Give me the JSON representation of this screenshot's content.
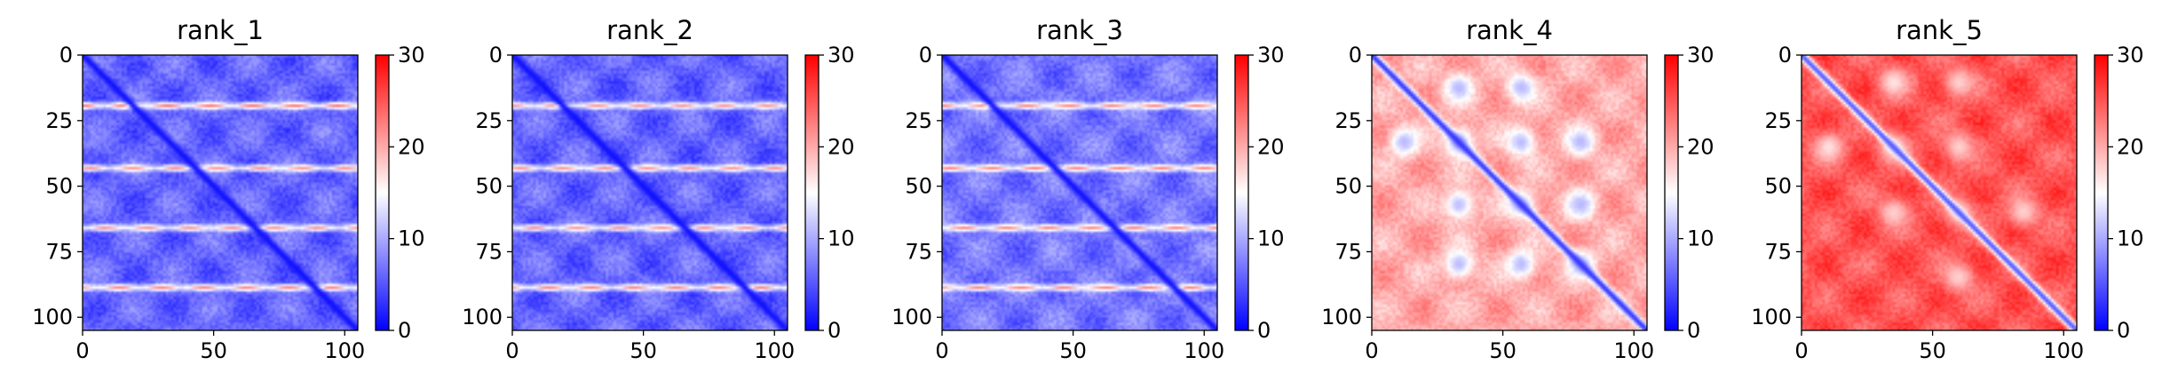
{
  "figure": {
    "panels": [
      "rank_1",
      "rank_2",
      "rank_3",
      "rank_4",
      "rank_5"
    ]
  },
  "chart_data": [
    {
      "type": "heatmap",
      "title": "rank_1",
      "x_range": [
        0,
        105
      ],
      "y_range": [
        0,
        105
      ],
      "x_ticks": [
        0,
        50,
        100
      ],
      "y_ticks": [
        0,
        25,
        50,
        75,
        100
      ],
      "y_inverted": true,
      "colormap": "bwr",
      "colorbar": {
        "min": 0,
        "max": 30,
        "ticks": [
          0,
          10,
          20,
          30
        ]
      },
      "pattern": {
        "base_value": 6,
        "diagonal_value": 1,
        "bands": [
          {
            "row": 19,
            "value": 23
          },
          {
            "row": 43,
            "value": 21
          },
          {
            "row": 66,
            "value": 21
          },
          {
            "row": 89,
            "value": 22
          }
        ]
      }
    },
    {
      "type": "heatmap",
      "title": "rank_2",
      "x_range": [
        0,
        105
      ],
      "y_range": [
        0,
        105
      ],
      "x_ticks": [
        0,
        50,
        100
      ],
      "y_ticks": [
        0,
        25,
        50,
        75,
        100
      ],
      "y_inverted": true,
      "colormap": "bwr",
      "colorbar": {
        "min": 0,
        "max": 30,
        "ticks": [
          0,
          10,
          20,
          30
        ]
      },
      "pattern": {
        "base_value": 6,
        "diagonal_value": 1,
        "bands": [
          {
            "row": 19,
            "value": 21
          },
          {
            "row": 43,
            "value": 21
          },
          {
            "row": 66,
            "value": 21
          },
          {
            "row": 89,
            "value": 22
          }
        ]
      }
    },
    {
      "type": "heatmap",
      "title": "rank_3",
      "x_range": [
        0,
        105
      ],
      "y_range": [
        0,
        105
      ],
      "x_ticks": [
        0,
        50,
        100
      ],
      "y_ticks": [
        0,
        25,
        50,
        75,
        100
      ],
      "y_inverted": true,
      "colormap": "bwr",
      "colorbar": {
        "min": 0,
        "max": 30,
        "ticks": [
          0,
          10,
          20,
          30
        ]
      },
      "pattern": {
        "base_value": 7,
        "diagonal_value": 1,
        "bands": [
          {
            "row": 19,
            "value": 22
          },
          {
            "row": 43,
            "value": 22
          },
          {
            "row": 66,
            "value": 22
          },
          {
            "row": 89,
            "value": 22
          }
        ]
      }
    },
    {
      "type": "heatmap",
      "title": "rank_4",
      "x_range": [
        0,
        105
      ],
      "y_range": [
        0,
        105
      ],
      "x_ticks": [
        0,
        50,
        100
      ],
      "y_ticks": [
        0,
        25,
        50,
        75,
        100
      ],
      "y_inverted": true,
      "colormap": "bwr",
      "colorbar": {
        "min": 0,
        "max": 30,
        "ticks": [
          0,
          10,
          20,
          30
        ]
      },
      "pattern": {
        "base_value": 20,
        "diagonal_value": 3,
        "blobs": [
          {
            "row": 12,
            "col": 33,
            "value": 10
          },
          {
            "row": 12,
            "col": 57,
            "value": 10
          },
          {
            "row": 33,
            "col": 12,
            "value": 10
          },
          {
            "row": 33,
            "col": 33,
            "value": 9
          },
          {
            "row": 33,
            "col": 57,
            "value": 10
          },
          {
            "row": 33,
            "col": 80,
            "value": 10
          },
          {
            "row": 57,
            "col": 33,
            "value": 10
          },
          {
            "row": 57,
            "col": 57,
            "value": 10
          },
          {
            "row": 57,
            "col": 80,
            "value": 10
          },
          {
            "row": 80,
            "col": 33,
            "value": 10
          },
          {
            "row": 80,
            "col": 57,
            "value": 10
          },
          {
            "row": 80,
            "col": 80,
            "value": 10
          }
        ]
      }
    },
    {
      "type": "heatmap",
      "title": "rank_5",
      "x_range": [
        0,
        105
      ],
      "y_range": [
        0,
        105
      ],
      "x_ticks": [
        0,
        50,
        100
      ],
      "y_ticks": [
        0,
        25,
        50,
        75,
        100
      ],
      "y_inverted": true,
      "colormap": "bwr",
      "colorbar": {
        "min": 0,
        "max": 30,
        "ticks": [
          0,
          10,
          20,
          30
        ]
      },
      "pattern": {
        "base_value": 25,
        "diagonal_value": 5,
        "blobs": [
          {
            "row": 10,
            "col": 35,
            "value": 16
          },
          {
            "row": 10,
            "col": 60,
            "value": 17
          },
          {
            "row": 35,
            "col": 10,
            "value": 16
          },
          {
            "row": 35,
            "col": 35,
            "value": 16
          },
          {
            "row": 35,
            "col": 60,
            "value": 17
          },
          {
            "row": 60,
            "col": 35,
            "value": 17
          },
          {
            "row": 60,
            "col": 60,
            "value": 17
          },
          {
            "row": 60,
            "col": 85,
            "value": 17
          },
          {
            "row": 85,
            "col": 60,
            "value": 17
          }
        ]
      }
    }
  ]
}
